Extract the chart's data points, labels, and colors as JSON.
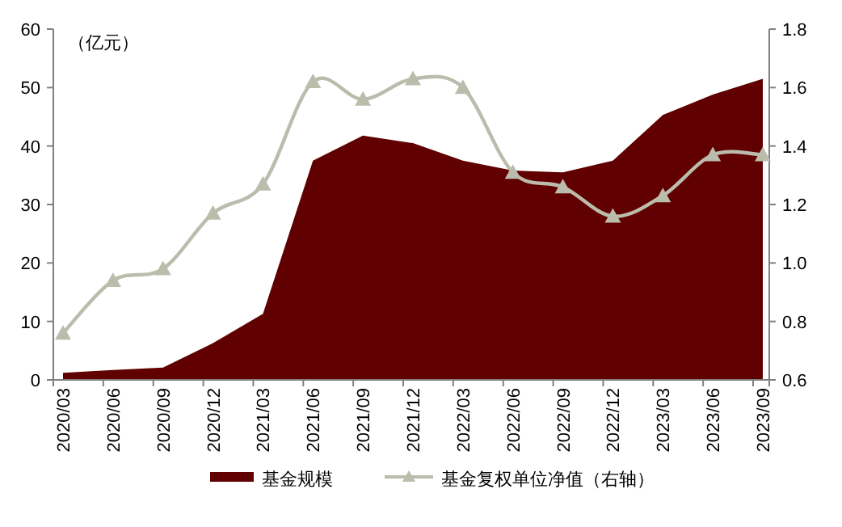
{
  "chart_data": {
    "type": "area",
    "ylabel": "（亿元）",
    "categories": [
      "2020/03",
      "2020/06",
      "2020/09",
      "2020/12",
      "2021/03",
      "2021/06",
      "2021/09",
      "2021/12",
      "2022/03",
      "2022/06",
      "2022/09",
      "2022/12",
      "2023/03",
      "2023/06",
      "2023/09"
    ],
    "series": [
      {
        "name": "基金规模",
        "color": "#600000",
        "values": [
          1.2,
          1.7,
          2.1,
          6.3,
          11.3,
          37.5,
          41.8,
          40.5,
          37.5,
          35.8,
          35.5,
          37.5,
          45.3,
          48.8,
          51.5
        ]
      },
      {
        "name": "基金复权单位净值（右轴）",
        "type": "line",
        "axis": "y2",
        "color": "#bcbcac",
        "marker": "triangle",
        "values": [
          0.76,
          0.94,
          0.98,
          1.17,
          1.27,
          1.62,
          1.56,
          1.63,
          1.6,
          1.31,
          1.26,
          1.16,
          1.23,
          1.37,
          1.37
        ]
      }
    ],
    "ylim": [
      0,
      60
    ],
    "yticks": [
      0,
      10,
      20,
      30,
      40,
      50,
      60
    ],
    "y2lim": [
      0.6,
      1.8
    ],
    "y2ticks": [
      0.6,
      0.8,
      {
        "value": 1,
        "label": "1.0"
      },
      1.2,
      1.4,
      1.6,
      1.8
    ],
    "legend": "bottom",
    "grid": false
  }
}
